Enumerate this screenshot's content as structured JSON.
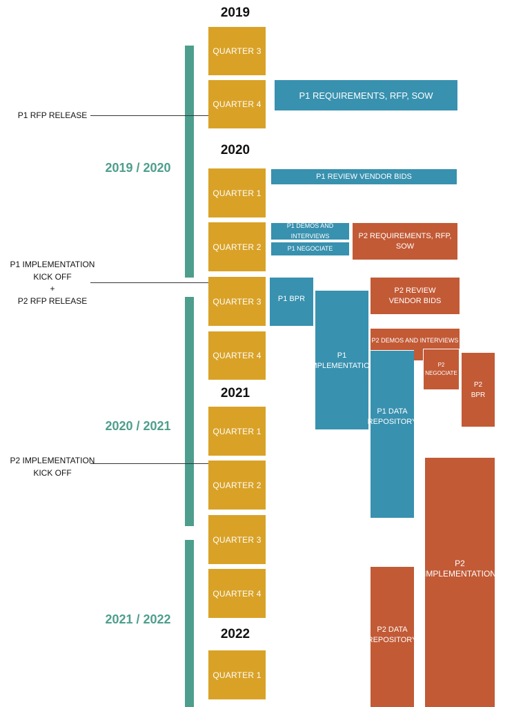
{
  "colors": {
    "quarter": "#D9A227",
    "period": "#4D9E8C",
    "p1": "#3891AF",
    "p2": "#C25A36"
  },
  "years": [
    "2019",
    "2020",
    "2021",
    "2022"
  ],
  "quarters": [
    "QUARTER 3",
    "QUARTER 4",
    "QUARTER 1",
    "QUARTER 2",
    "QUARTER 3",
    "QUARTER 4",
    "QUARTER 1",
    "QUARTER 2",
    "QUARTER 3",
    "QUARTER 4",
    "QUARTER 1"
  ],
  "periods": [
    "2019 / 2020",
    "2020 / 2021",
    "2021 / 2022"
  ],
  "milestones": {
    "p1_rfp_release": "P1 RFP RELEASE",
    "p1_impl_line1": "P1 IMPLEMENTATION",
    "p1_impl_line2": "KICK OFF",
    "plus": "+",
    "p2_rfp_release": "P2 RFP RELEASE",
    "p2_impl_line1": "P2 IMPLEMENTATION",
    "p2_impl_line2": "KICK OFF"
  },
  "tasks": {
    "p1_requirements": "P1 REQUIREMENTS, RFP, SOW",
    "p1_review_bids": "P1 REVIEW VENDOR BIDS",
    "p1_demos": "P1 DEMOS AND INTERVIEWS",
    "p1_negociate": "P1 NEGOCIATE",
    "p2_requirements": "P2 REQUIREMENTS, RFP, SOW",
    "p1_bpr": "P1 BPR",
    "p1_impl_line1": "P1",
    "p1_impl_line2": "IMPLEMENTATION",
    "p2_review_line1": "P2 REVIEW",
    "p2_review_line2": "VENDOR BIDS",
    "p2_demos": "P2 DEMOS AND INTERVIEWS",
    "p2_negociate_line1": "P2",
    "p2_negociate_line2": "NEGOCIATE",
    "p2_bpr_line1": "P2",
    "p2_bpr_line2": "BPR",
    "p1_data_line1": "P1 DATA",
    "p1_data_line2": "REPOSITORY",
    "p2_impl_line1": "P2",
    "p2_impl_line2": "IMPLEMENTATION",
    "p2_data_line1": "P2 DATA",
    "p2_data_line2": "REPOSITORY"
  }
}
